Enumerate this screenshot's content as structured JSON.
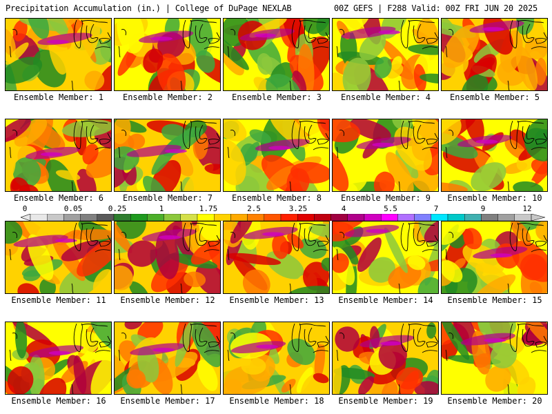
{
  "header": {
    "left": "Precipitation Accumulation (in.) | College of DuPage NEXLAB",
    "right": "00Z GEFS | F288 Valid: 00Z FRI JUN 20 2025"
  },
  "panels": [
    {
      "label": "Ensemble Member: 1"
    },
    {
      "label": "Ensemble Member: 2"
    },
    {
      "label": "Ensemble Member: 3"
    },
    {
      "label": "Ensemble Member: 4"
    },
    {
      "label": "Ensemble Member: 5"
    },
    {
      "label": "Ensemble Member: 6"
    },
    {
      "label": "Ensemble Member: 7"
    },
    {
      "label": "Ensemble Member: 8"
    },
    {
      "label": "Ensemble Member: 9"
    },
    {
      "label": "Ensemble Member: 10"
    },
    {
      "label": "Ensemble Member: 11"
    },
    {
      "label": "Ensemble Member: 12"
    },
    {
      "label": "Ensemble Member: 13"
    },
    {
      "label": "Ensemble Member: 14"
    },
    {
      "label": "Ensemble Member: 15"
    },
    {
      "label": "Ensemble Member: 16"
    },
    {
      "label": "Ensemble Member: 17"
    },
    {
      "label": "Ensemble Member: 18"
    },
    {
      "label": "Ensemble Member: 19"
    },
    {
      "label": "Ensemble Member: 20"
    }
  ],
  "scale": {
    "tick_labels": [
      "0",
      "0.05",
      "0.25",
      "1",
      "1.75",
      "2.5",
      "3.25",
      "4",
      "5.5",
      "7",
      "9",
      "12"
    ],
    "colors": [
      "#e8e8e8",
      "#c8c8c8",
      "#a0a0a0",
      "#808080",
      "#5a5a5a",
      "#2e7d2e",
      "#1f9a1f",
      "#4caf2a",
      "#8cc83c",
      "#d4e04a",
      "#ffff00",
      "#ffd200",
      "#ffaa00",
      "#ff8000",
      "#ff5500",
      "#ff2000",
      "#e00000",
      "#c00010",
      "#a00040",
      "#b0008a",
      "#d000c0",
      "#ff00ff",
      "#b070ff",
      "#8080ff",
      "#00e6ff",
      "#00c8c8",
      "#40b0b0",
      "#808080",
      "#a0a0a0",
      "#c8c8c8"
    ]
  }
}
